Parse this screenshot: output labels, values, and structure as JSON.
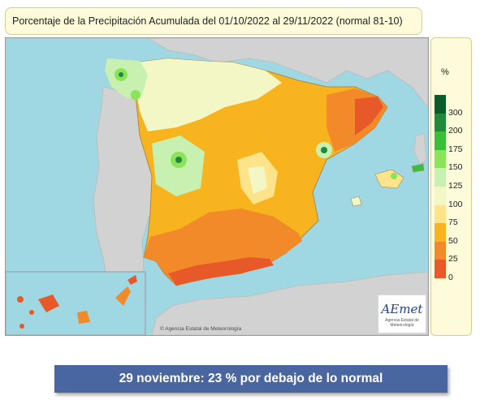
{
  "title": "Porcentaje de la Precipitación Acumulada del 01/10/2022 al 29/11/2022 (normal 81-10)",
  "legend": {
    "unit": "%",
    "items": [
      {
        "label": "300",
        "color": "#0b5a2a"
      },
      {
        "label": "200",
        "color": "#1f8a3a"
      },
      {
        "label": "175",
        "color": "#3bbf3a"
      },
      {
        "label": "150",
        "color": "#8be35a"
      },
      {
        "label": "125",
        "color": "#c8f0b0"
      },
      {
        "label": "100",
        "color": "#f3f7c6"
      },
      {
        "label": "75",
        "color": "#fde48a"
      },
      {
        "label": "50",
        "color": "#f7b41e"
      },
      {
        "label": "25",
        "color": "#f28a2a"
      },
      {
        "label": "0",
        "color": "#e8592a"
      }
    ]
  },
  "credit": "© Agencia Estatal de Meteorología",
  "logo": {
    "brand": "AEmet",
    "subtitle": "Agencia Estatal de Meteorología"
  },
  "banner": "29 noviembre: 23 % por debajo de lo normal",
  "colors": {
    "sea": "#9fd7e3",
    "land_other": "#d2d2d2",
    "banner_bg": "#4a66a0"
  }
}
